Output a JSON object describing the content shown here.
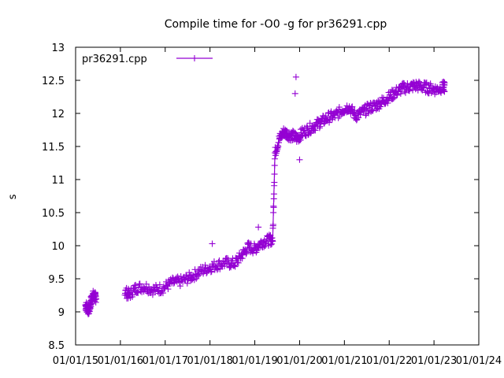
{
  "chart_data": {
    "type": "scatter",
    "title": "Compile time for -O0 -g for pr36291.cpp",
    "xlabel": "",
    "ylabel": "s",
    "xlim": [
      2015.0,
      2024.0
    ],
    "ylim": [
      8.5,
      13.0
    ],
    "yticks": [
      8.5,
      9,
      9.5,
      10,
      10.5,
      11,
      11.5,
      12,
      12.5,
      13
    ],
    "ytick_labels": [
      "8.5",
      "9",
      "9.5",
      "10",
      "10.5",
      "11",
      "11.5",
      "12",
      "12.5",
      "13"
    ],
    "xticks": [
      2015,
      2016,
      2017,
      2018,
      2019,
      2020,
      2021,
      2022,
      2023,
      2024
    ],
    "xtick_labels": [
      "01/01/15",
      "01/01/16",
      "01/01/17",
      "01/01/18",
      "01/01/19",
      "01/01/20",
      "01/01/21",
      "01/01/22",
      "01/01/23",
      "01/01/24"
    ],
    "legend_position": "top-left",
    "series": [
      {
        "name": "pr36291.cpp",
        "color": "#9400d3",
        "marker": "plus",
        "points": [
          [
            2015.22,
            9.1
          ],
          [
            2015.26,
            9.06
          ],
          [
            2015.3,
            9.02
          ],
          [
            2015.34,
            9.15
          ],
          [
            2015.38,
            9.25
          ],
          [
            2015.42,
            9.22
          ],
          [
            2016.1,
            9.3
          ],
          [
            2016.2,
            9.26
          ],
          [
            2016.35,
            9.36
          ],
          [
            2016.55,
            9.38
          ],
          [
            2016.75,
            9.33
          ],
          [
            2016.95,
            9.36
          ],
          [
            2017.15,
            9.44
          ],
          [
            2017.35,
            9.46
          ],
          [
            2017.55,
            9.52
          ],
          [
            2017.75,
            9.6
          ],
          [
            2017.95,
            9.66
          ],
          [
            2018.15,
            9.71
          ],
          [
            2018.35,
            9.74
          ],
          [
            2018.55,
            9.73
          ],
          [
            2018.7,
            9.85
          ],
          [
            2018.85,
            9.98
          ],
          [
            2019.0,
            9.95
          ],
          [
            2019.15,
            10.05
          ],
          [
            2019.3,
            10.08
          ],
          [
            2019.4,
            10.1
          ],
          [
            2019.45,
            11.4
          ],
          [
            2019.55,
            11.62
          ],
          [
            2019.65,
            11.72
          ],
          [
            2019.75,
            11.68
          ],
          [
            2019.85,
            11.66
          ],
          [
            2019.95,
            11.62
          ],
          [
            2020.05,
            11.7
          ],
          [
            2020.2,
            11.76
          ],
          [
            2020.35,
            11.82
          ],
          [
            2020.5,
            11.88
          ],
          [
            2020.65,
            11.94
          ],
          [
            2020.8,
            11.97
          ],
          [
            2020.95,
            12.05
          ],
          [
            2021.1,
            12.1
          ],
          [
            2021.25,
            11.96
          ],
          [
            2021.4,
            12.02
          ],
          [
            2021.55,
            12.08
          ],
          [
            2021.7,
            12.12
          ],
          [
            2021.85,
            12.18
          ],
          [
            2022.0,
            12.25
          ],
          [
            2022.15,
            12.32
          ],
          [
            2022.3,
            12.38
          ],
          [
            2022.45,
            12.4
          ],
          [
            2022.6,
            12.42
          ],
          [
            2022.75,
            12.4
          ],
          [
            2022.9,
            12.38
          ],
          [
            2023.05,
            12.36
          ],
          [
            2023.2,
            12.4
          ]
        ],
        "outliers": [
          [
            2018.05,
            10.03
          ],
          [
            2019.08,
            10.28
          ],
          [
            2019.9,
            12.3
          ],
          [
            2019.92,
            12.55
          ],
          [
            2020.0,
            11.3
          ]
        ]
      }
    ]
  }
}
